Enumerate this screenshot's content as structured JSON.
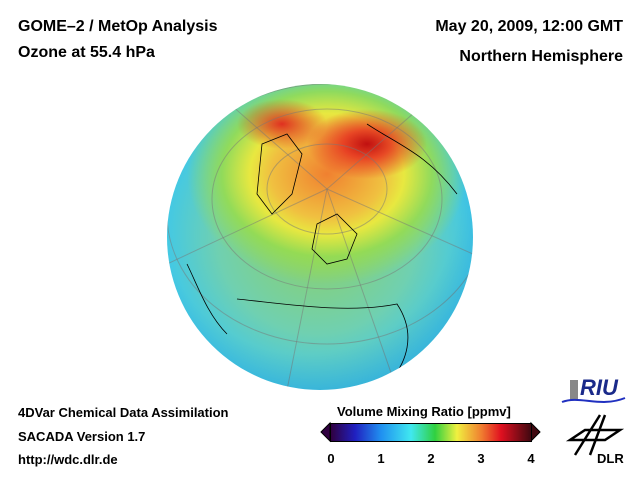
{
  "header": {
    "title": "GOME–2 / MetOp Analysis",
    "subtitle": "Ozone at 55.4 hPa",
    "date": "May 20, 2009, 12:00 GMT",
    "region": "Northern Hemisphere"
  },
  "footer": {
    "method": "4DVar Chemical Data Assimilation",
    "version": "SACADA Version 1.7",
    "url": "http://wdc.dlr.de"
  },
  "colorbar": {
    "title": "Volume Mixing Ratio [ppmv]",
    "ticks": [
      "0",
      "1",
      "2",
      "3",
      "4"
    ],
    "min": 0,
    "max": 4
  },
  "logos": {
    "riu": "RIU",
    "dlr": "DLR"
  }
}
